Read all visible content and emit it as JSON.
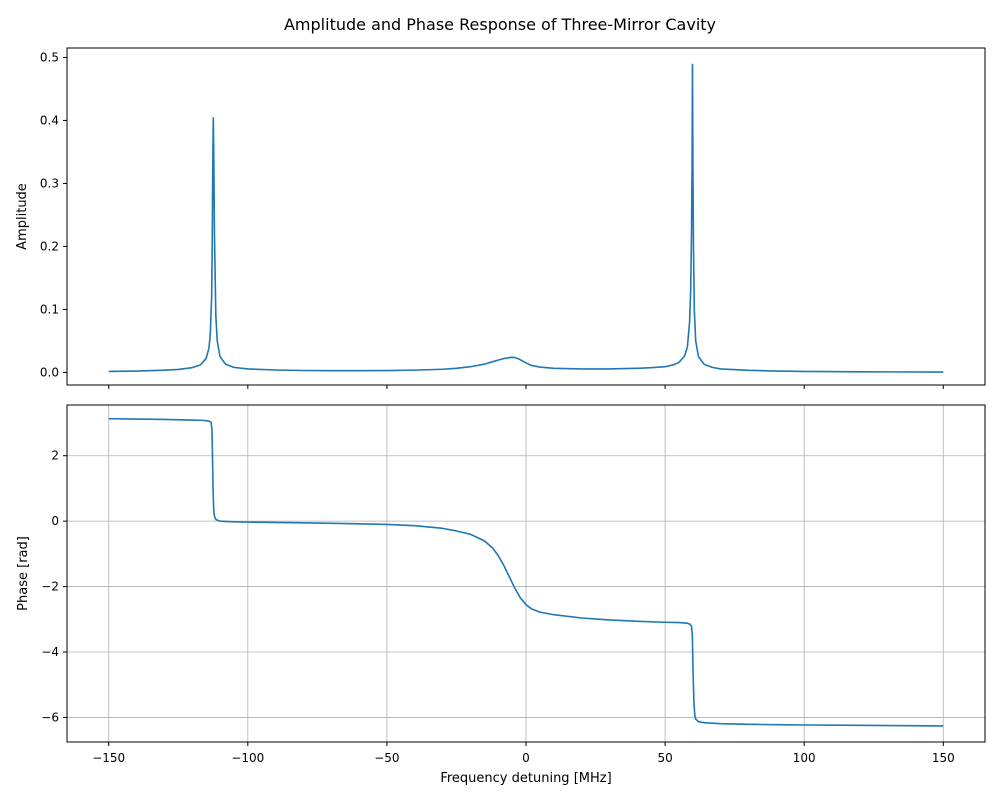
{
  "figure": {
    "title": "Amplitude and Phase Response of Three-Mirror Cavity"
  },
  "chart_data": [
    {
      "type": "line",
      "xlabel": "",
      "ylabel": "Amplitude",
      "xlim": [
        -165,
        165
      ],
      "ylim": [
        -0.02,
        0.515
      ],
      "xticks": [
        -150,
        -100,
        -50,
        0,
        50,
        100,
        150
      ],
      "xtick_labels_shown": false,
      "yticks": [
        0.0,
        0.1,
        0.2,
        0.3,
        0.4,
        0.5
      ],
      "ytick_labels": [
        "0.0",
        "0.1",
        "0.2",
        "0.3",
        "0.4",
        "0.5"
      ],
      "grid": false,
      "line_color": "#1f77b4",
      "series": [
        {
          "x": [
            -150,
            -140,
            -130,
            -125,
            -120,
            -117,
            -115,
            -114,
            -113.5,
            -113,
            -112.8,
            -112.6,
            -112.4,
            -112.2,
            -112,
            -111.5,
            -111,
            -110,
            -108,
            -105,
            -100,
            -90,
            -80,
            -70,
            -60,
            -50,
            -40,
            -30,
            -25,
            -20,
            -15,
            -12,
            -10,
            -8,
            -6,
            -5,
            -4,
            -3,
            -2,
            0,
            2,
            5,
            10,
            20,
            30,
            40,
            45,
            50,
            53,
            55,
            57,
            58,
            58.8,
            59.2,
            59.5,
            59.7,
            59.85,
            60,
            60.2,
            60.5,
            61,
            62,
            64,
            67,
            70,
            80,
            90,
            100,
            120,
            150
          ],
          "y": [
            0.0015,
            0.0022,
            0.0035,
            0.0047,
            0.0075,
            0.012,
            0.022,
            0.038,
            0.06,
            0.12,
            0.2,
            0.33,
            0.404,
            0.33,
            0.22,
            0.09,
            0.05,
            0.025,
            0.013,
            0.008,
            0.0055,
            0.0038,
            0.003,
            0.0027,
            0.0027,
            0.0029,
            0.0036,
            0.005,
            0.0065,
            0.009,
            0.013,
            0.017,
            0.0195,
            0.022,
            0.0235,
            0.024,
            0.0235,
            0.022,
            0.02,
            0.015,
            0.011,
            0.0085,
            0.0065,
            0.0055,
            0.0055,
            0.0065,
            0.0075,
            0.009,
            0.012,
            0.016,
            0.026,
            0.04,
            0.08,
            0.13,
            0.22,
            0.33,
            0.489,
            0.33,
            0.2,
            0.1,
            0.05,
            0.025,
            0.013,
            0.008,
            0.0055,
            0.0033,
            0.0022,
            0.0015,
            0.001,
            0.0005
          ]
        }
      ]
    },
    {
      "type": "line",
      "xlabel": "Frequency detuning [MHz]",
      "ylabel": "Phase [rad]",
      "xlim": [
        -165,
        165
      ],
      "ylim": [
        -6.75,
        3.55
      ],
      "xticks": [
        -150,
        -100,
        -50,
        0,
        50,
        100,
        150
      ],
      "xtick_labels": [
        "−150",
        "−100",
        "−50",
        "0",
        "50",
        "100",
        "150"
      ],
      "yticks": [
        -6,
        -4,
        -2,
        0,
        2
      ],
      "ytick_labels": [
        "−6",
        "−4",
        "−2",
        "0",
        "2"
      ],
      "grid": true,
      "line_color": "#1f77b4",
      "series": [
        {
          "x": [
            -150,
            -140,
            -130,
            -120,
            -116,
            -114,
            -113.2,
            -112.9,
            -112.7,
            -112.5,
            -112.3,
            -112.1,
            -111.8,
            -111.4,
            -111,
            -110,
            -105,
            -100,
            -80,
            -60,
            -50,
            -40,
            -30,
            -25,
            -20,
            -15,
            -12,
            -10,
            -8,
            -6,
            -4,
            -2,
            0,
            2,
            5,
            10,
            20,
            30,
            40,
            50,
            55,
            58,
            59,
            59.5,
            59.8,
            60.1,
            60.4,
            60.7,
            61,
            62,
            64,
            70,
            80,
            90,
            100,
            120,
            150
          ],
          "y": [
            3.13,
            3.12,
            3.11,
            3.09,
            3.08,
            3.06,
            3.02,
            2.8,
            2.0,
            1.0,
            0.45,
            0.2,
            0.1,
            0.05,
            0.03,
            0.0,
            -0.02,
            -0.03,
            -0.05,
            -0.08,
            -0.1,
            -0.14,
            -0.22,
            -0.3,
            -0.4,
            -0.6,
            -0.82,
            -1.05,
            -1.35,
            -1.7,
            -2.05,
            -2.35,
            -2.55,
            -2.68,
            -2.78,
            -2.86,
            -2.96,
            -3.02,
            -3.06,
            -3.09,
            -3.1,
            -3.12,
            -3.15,
            -3.22,
            -3.5,
            -4.8,
            -5.6,
            -5.95,
            -6.05,
            -6.13,
            -6.16,
            -6.19,
            -6.21,
            -6.22,
            -6.23,
            -6.24,
            -6.26
          ]
        }
      ]
    }
  ]
}
